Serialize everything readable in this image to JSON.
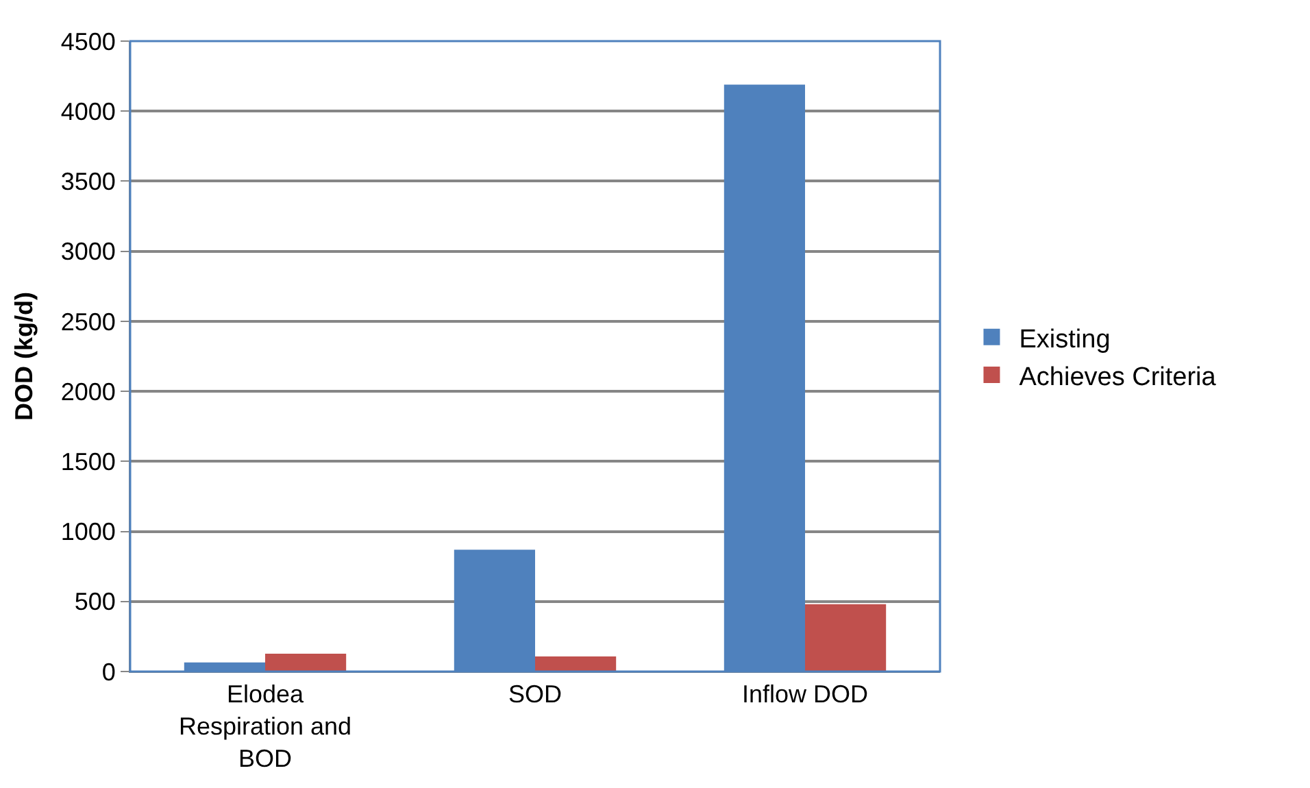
{
  "chart_data": {
    "type": "bar",
    "ylabel": "DOD (kg/d)",
    "categories": [
      "Elodea Respiration and BOD",
      "SOD",
      "Inflow DOD"
    ],
    "series": [
      {
        "name": "Existing",
        "color": "#4f81bd",
        "values": [
          65,
          870,
          4190
        ]
      },
      {
        "name": "Achieves Criteria",
        "color": "#c0504d",
        "values": [
          127,
          108,
          481
        ]
      }
    ],
    "ylim": [
      0,
      4500
    ],
    "yticks": [
      0,
      500,
      1000,
      1500,
      2000,
      2500,
      3000,
      3500,
      4000,
      4500
    ],
    "grid": "y",
    "legend": "right"
  }
}
